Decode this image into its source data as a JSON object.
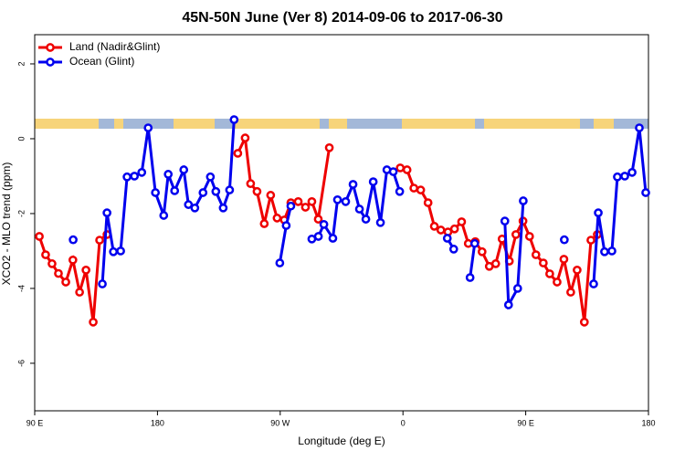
{
  "chart_data": {
    "type": "line",
    "title": "45N-50N June (Ver 8)   2014-09-06 to 2017-06-30",
    "xlabel": "Longitude (deg E)",
    "ylabel": "XCO2 - MLO trend (ppm)",
    "xlim": [
      90,
      540
    ],
    "ylim": [
      -7.27,
      2.78
    ],
    "xticks": [
      {
        "value": 90,
        "label": "90 E"
      },
      180,
      {
        "value": 270,
        "label": "90 W"
      },
      {
        "value": 360,
        "label": "0"
      },
      {
        "value": 450,
        "label": "90 E"
      },
      {
        "value": 540,
        "label": "180"
      }
    ],
    "yticks": [
      -6,
      -4,
      -2,
      0,
      2
    ],
    "legend": "topleft",
    "series": [
      {
        "name": "Land (Nadir&Glint)",
        "color": "#ee0000",
        "x": [
          93.4,
          98,
          102.7,
          107.4,
          112.8,
          118,
          122.9,
          127.6,
          132.9,
          137.6,
          143,
          190,
          238.9,
          244.3,
          248.3,
          253,
          258.3,
          263,
          267.7,
          273,
          277.8,
          283.2,
          288.5,
          293.2,
          297.9,
          306,
          330,
          358,
          363,
          368,
          373,
          378.4,
          383,
          387.8,
          393,
          397.8,
          403,
          407.9,
          413,
          418,
          423.3,
          428,
          432.7,
          438,
          442.8,
          448,
          452.8,
          457.5,
          462.9,
          467.6,
          473,
          478,
          483,
          487.7,
          493,
          497.8,
          502.5
        ],
        "values": [
          -2.61,
          -3.1,
          -3.34,
          -3.6,
          -3.83,
          -3.24,
          -4.1,
          -3.51,
          -4.9,
          -2.71,
          -2.56,
          null,
          -0.39,
          0.02,
          -1.2,
          -1.41,
          -2.27,
          -1.51,
          -2.12,
          -2.17,
          -1.71,
          -1.68,
          -1.83,
          -1.68,
          -2.15,
          -0.24,
          null,
          -0.78,
          -0.83,
          -1.32,
          -1.37,
          -1.71,
          -2.34,
          -2.44,
          -2.49,
          -2.41,
          -2.22,
          -2.8,
          -2.75,
          -3.02,
          -3.41,
          -3.34,
          -2.68,
          -3.27,
          -2.56,
          -2.2,
          -2.61,
          -3.1,
          -3.32,
          -3.61,
          -3.83,
          -3.22,
          -4.1,
          -3.51,
          -4.9,
          -2.71,
          -2.56
        ]
      },
      {
        "name": "Ocean (Glint)",
        "color": "#0000ee",
        "x": [
          118.2,
          130,
          139.6,
          143,
          147.7,
          153,
          157.7,
          163.1,
          168.5,
          173.2,
          178.5,
          184.6,
          187.9,
          192.6,
          199.3,
          202.7,
          207.4,
          213.4,
          218.8,
          222.8,
          228.2,
          232.9,
          236.2,
          250,
          269.7,
          274.4,
          277.8,
          285,
          293.2,
          298,
          302,
          308.6,
          312,
          318,
          323.4,
          328.1,
          332.8,
          338.2,
          343.5,
          348.2,
          352.9,
          357.6,
          375,
          392.5,
          397.2,
          403,
          409.2,
          412.6,
          425,
          434.7,
          437.4,
          444.1,
          448.2,
          465,
          478.3,
          490,
          499.8,
          503.2,
          507.8,
          513.2,
          517.2,
          522.6,
          528,
          533.3,
          538
        ],
        "values": [
          -2.7,
          null,
          -3.88,
          -1.98,
          -3.02,
          -3.0,
          -1.02,
          -1.0,
          -0.9,
          0.29,
          -1.44,
          -2.05,
          -0.95,
          -1.39,
          -0.83,
          -1.76,
          -1.85,
          -1.44,
          -1.02,
          -1.41,
          -1.85,
          -1.37,
          0.51,
          null,
          -3.32,
          -2.32,
          -1.8,
          null,
          -2.68,
          -2.61,
          -2.29,
          -2.66,
          -1.63,
          -1.68,
          -1.22,
          -1.88,
          -2.15,
          -1.15,
          -2.24,
          -0.83,
          -0.88,
          -1.41,
          null,
          -2.66,
          -2.95,
          null,
          -3.71,
          -2.8,
          null,
          -2.2,
          -4.44,
          -4.0,
          -1.66,
          null,
          -2.7,
          null,
          -3.88,
          -1.98,
          -3.02,
          -3.0,
          -1.02,
          -1.0,
          -0.9,
          0.29,
          -1.44
        ]
      }
    ]
  }
}
